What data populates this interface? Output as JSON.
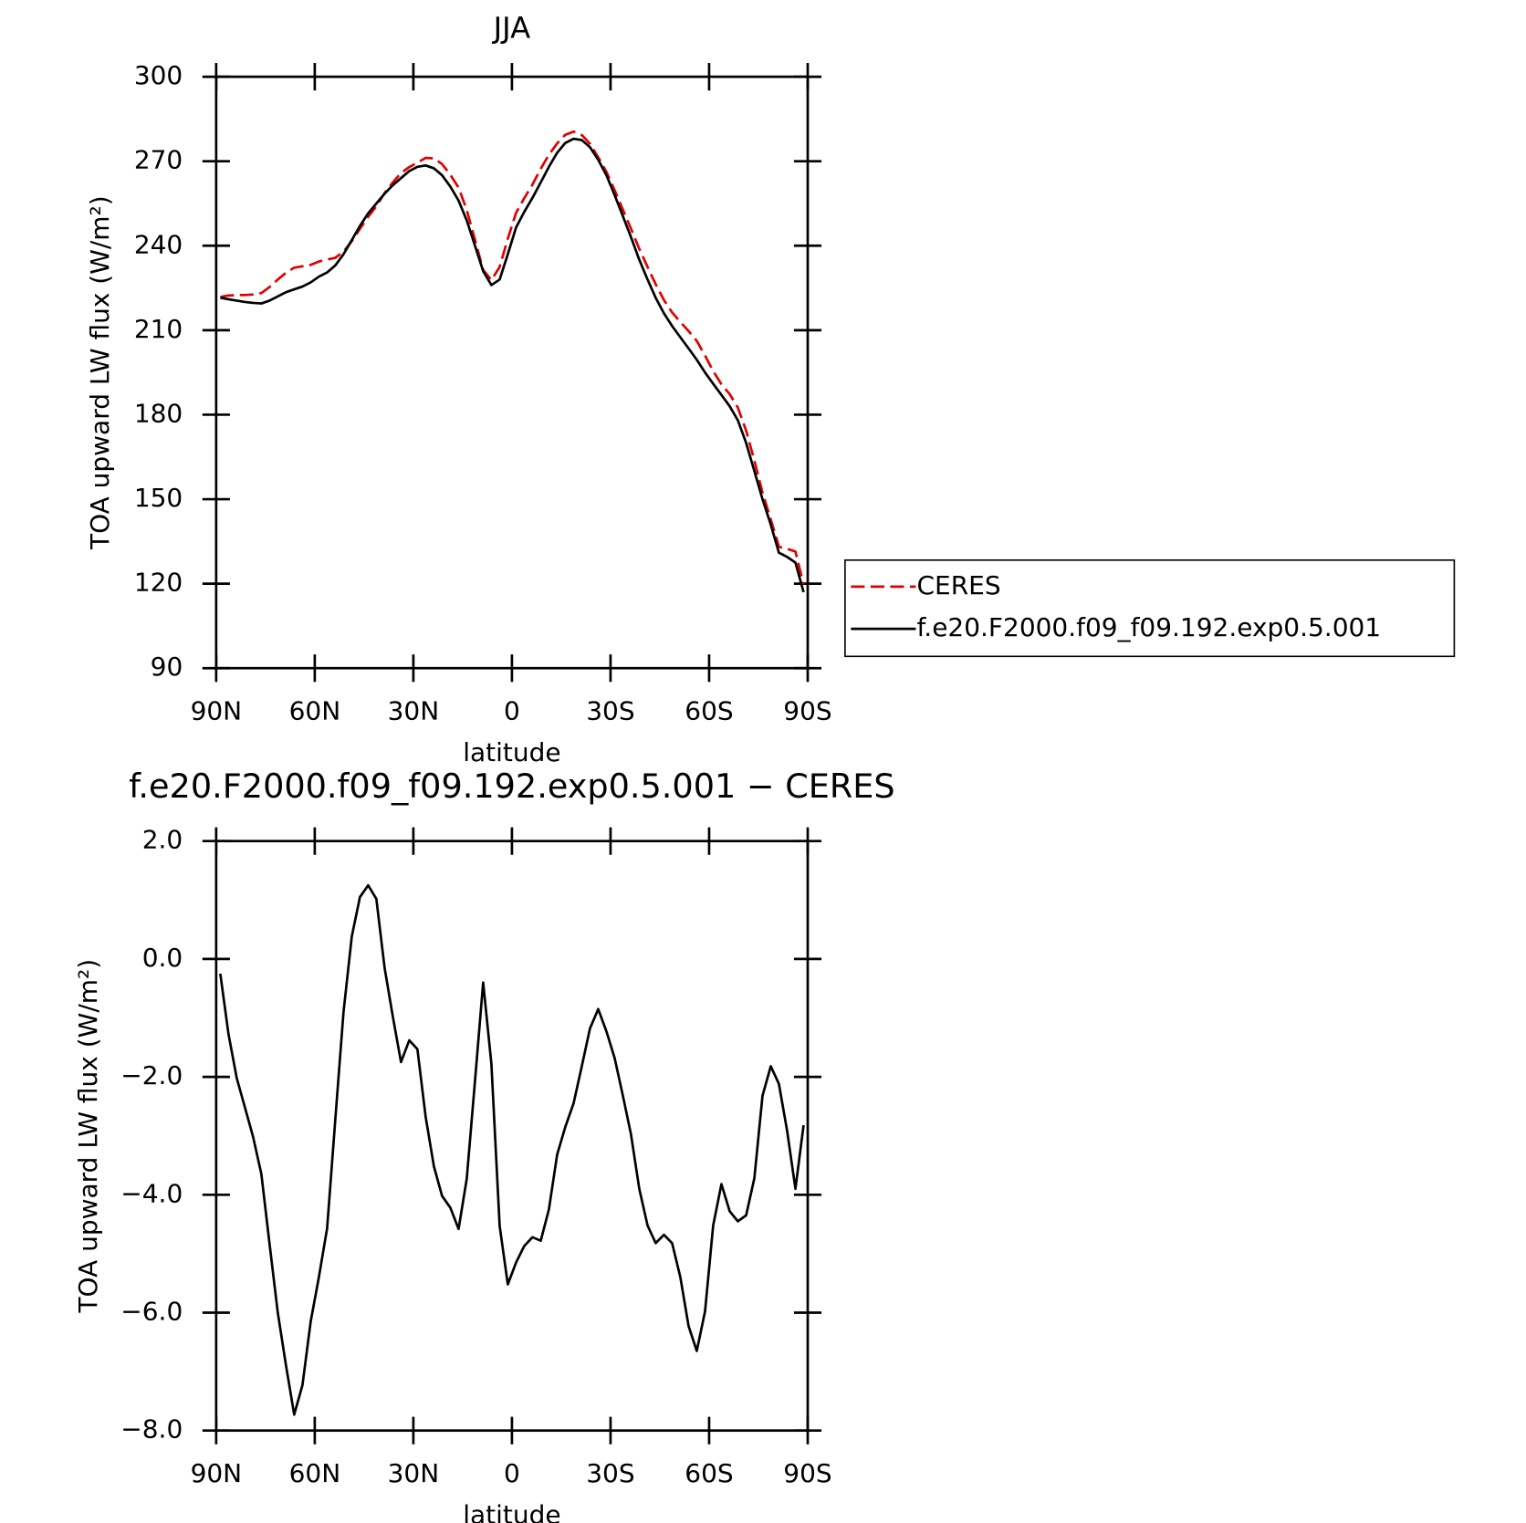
{
  "chart_data": [
    {
      "type": "line",
      "title": "JJA",
      "xlabel": "latitude",
      "ylabel": "TOA upward LW flux (W/m²)",
      "x": [
        88.75,
        86.25,
        83.75,
        81.25,
        78.75,
        76.25,
        73.75,
        71.25,
        68.75,
        66.25,
        63.75,
        61.25,
        58.75,
        56.25,
        53.75,
        51.25,
        48.75,
        46.25,
        43.75,
        41.25,
        38.75,
        36.25,
        33.75,
        31.25,
        28.75,
        26.25,
        23.75,
        21.25,
        18.75,
        16.25,
        13.75,
        11.25,
        8.75,
        6.25,
        3.75,
        1.25,
        -1.25,
        -3.75,
        -6.25,
        -8.75,
        -11.25,
        -13.75,
        -16.25,
        -18.75,
        -21.25,
        -23.75,
        -26.25,
        -28.75,
        -31.25,
        -33.75,
        -36.25,
        -38.75,
        -41.25,
        -43.75,
        -46.25,
        -48.75,
        -51.25,
        -53.75,
        -56.25,
        -58.75,
        -61.25,
        -63.75,
        -66.25,
        -68.75,
        -71.25,
        -73.75,
        -76.25,
        -78.75,
        -81.25,
        -83.75,
        -86.25,
        -88.75
      ],
      "series": [
        {
          "name": "CERES",
          "color": "#e00000",
          "dashed": true,
          "values": [
            221.8,
            222.3,
            222.5,
            222.5,
            222.7,
            223.2,
            225.3,
            228.0,
            230.4,
            232.2,
            232.7,
            233.2,
            234.4,
            235.1,
            235.7,
            237.9,
            241.6,
            246.0,
            250.3,
            254.0,
            258.7,
            262.5,
            265.8,
            267.9,
            269.5,
            271.2,
            271.0,
            269.0,
            265.2,
            260.6,
            252.7,
            242.1,
            231.4,
            227.8,
            232.5,
            242.5,
            251.7,
            256.9,
            261.7,
            267.3,
            272.3,
            276.3,
            279.4,
            280.5,
            279.3,
            276.2,
            271.4,
            266.2,
            259.7,
            252.8,
            246.0,
            238.9,
            232.5,
            226.3,
            220.7,
            216.3,
            212.9,
            209.7,
            206.2,
            201.0,
            195.5,
            190.8,
            187.3,
            182.5,
            174.4,
            163.7,
            152.3,
            142.8,
            133.1,
            132.4,
            131.4,
            119.8
          ]
        },
        {
          "name": "f.e20.F2000.f09_f09.192.exp0.5.001",
          "color": "#000000",
          "dashed": false,
          "values": [
            221.5,
            221,
            220.5,
            220,
            219.7,
            219.5,
            220.5,
            222,
            223.5,
            224.5,
            225.5,
            227,
            229,
            230.5,
            233,
            237,
            242,
            247,
            251.5,
            255,
            258.5,
            261.5,
            264,
            266.5,
            268,
            268.5,
            267.5,
            265,
            261,
            256,
            249,
            240,
            231,
            226,
            228,
            237,
            246.5,
            252,
            257,
            262.5,
            268,
            273,
            276.5,
            278,
            277.5,
            275,
            270.5,
            265,
            258,
            250.5,
            243,
            235,
            228,
            221.5,
            216,
            211.5,
            207.5,
            203.5,
            199.5,
            195,
            191,
            187,
            183,
            178,
            170,
            160,
            150,
            141,
            131,
            129.5,
            127.5,
            117
          ]
        }
      ],
      "xlim": [
        90,
        -90
      ],
      "xticks": [
        {
          "value": 90,
          "label": "90N"
        },
        {
          "value": 60,
          "label": "60N"
        },
        {
          "value": 30,
          "label": "30N"
        },
        0,
        {
          "value": -30,
          "label": "30S"
        },
        {
          "value": -60,
          "label": "60S"
        },
        {
          "value": -90,
          "label": "90S"
        }
      ],
      "ylim": [
        90,
        300
      ],
      "yticks": [
        90,
        120,
        150,
        180,
        210,
        240,
        270,
        300
      ],
      "legend": "right"
    },
    {
      "type": "line",
      "title": "f.e20.F2000.f09_f09.192.exp0.5.001 − CERES",
      "xlabel": "latitude",
      "ylabel": "TOA upward LW flux (W/m²)",
      "x": [
        88.75,
        86.25,
        83.75,
        81.25,
        78.75,
        76.25,
        73.75,
        71.25,
        68.75,
        66.25,
        63.75,
        61.25,
        58.75,
        56.25,
        53.75,
        51.25,
        48.75,
        46.25,
        43.75,
        41.25,
        38.75,
        36.25,
        33.75,
        31.25,
        28.75,
        26.25,
        23.75,
        21.25,
        18.75,
        16.25,
        13.75,
        11.25,
        8.75,
        6.25,
        3.75,
        1.25,
        -1.25,
        -3.75,
        -6.25,
        -8.75,
        -11.25,
        -13.75,
        -16.25,
        -18.75,
        -21.25,
        -23.75,
        -26.25,
        -28.75,
        -31.25,
        -33.75,
        -36.25,
        -38.75,
        -41.25,
        -43.75,
        -46.25,
        -48.75,
        -51.25,
        -53.75,
        -56.25,
        -58.75,
        -61.25,
        -63.75,
        -66.25,
        -68.75,
        -71.25,
        -73.75,
        -76.25,
        -78.75,
        -81.25,
        -83.75,
        -86.25,
        -88.75
      ],
      "series": [
        {
          "color": "#000000",
          "dashed": false,
          "values": [
            -0.25,
            -1.27,
            -2.02,
            -2.52,
            -3.02,
            -3.65,
            -4.83,
            -6.0,
            -6.9,
            -7.73,
            -7.23,
            -6.15,
            -5.4,
            -4.57,
            -2.73,
            -0.9,
            0.38,
            1.05,
            1.25,
            1.02,
            -0.15,
            -0.98,
            -1.75,
            -1.38,
            -1.53,
            -2.68,
            -3.52,
            -4.02,
            -4.22,
            -4.58,
            -3.73,
            -2.07,
            -0.4,
            -1.78,
            -4.53,
            -5.52,
            -5.15,
            -4.87,
            -4.72,
            -4.78,
            -4.25,
            -3.32,
            -2.85,
            -2.45,
            -1.82,
            -1.18,
            -0.85,
            -1.23,
            -1.68,
            -2.32,
            -2.98,
            -3.9,
            -4.52,
            -4.82,
            -4.68,
            -4.82,
            -5.4,
            -6.23,
            -6.65,
            -5.98,
            -4.52,
            -3.82,
            -4.28,
            -4.45,
            -4.35,
            -3.72,
            -2.32,
            -1.82,
            -2.12,
            -2.92,
            -3.9,
            -2.82
          ]
        }
      ],
      "xlim": [
        90,
        -90
      ],
      "xticks": [
        {
          "value": 90,
          "label": "90N"
        },
        {
          "value": 60,
          "label": "60N"
        },
        {
          "value": 30,
          "label": "30N"
        },
        0,
        {
          "value": -30,
          "label": "30S"
        },
        {
          "value": -60,
          "label": "60S"
        },
        {
          "value": -90,
          "label": "90S"
        }
      ],
      "ylim": [
        -8,
        2
      ],
      "yticks": [
        {
          "value": -8,
          "label": "−8.0"
        },
        {
          "value": -6,
          "label": "−6.0"
        },
        {
          "value": -4,
          "label": "−4.0"
        },
        {
          "value": -2,
          "label": "−2.0"
        },
        {
          "value": 0,
          "label": "0.0"
        },
        {
          "value": 2,
          "label": "2.0"
        }
      ]
    }
  ]
}
